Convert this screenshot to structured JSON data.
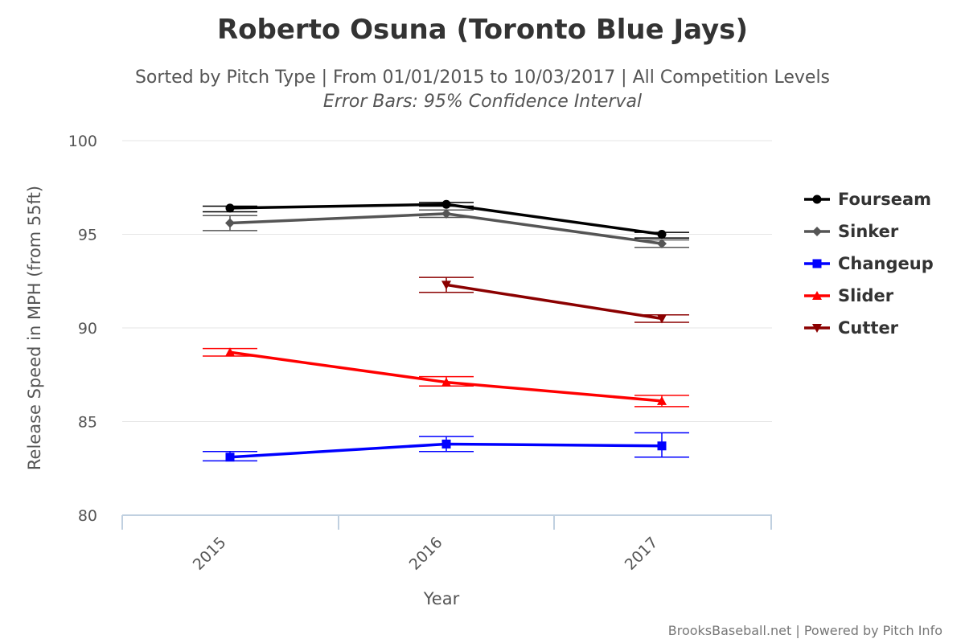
{
  "chart_data": {
    "type": "line",
    "title": "Roberto Osuna (Toronto Blue Jays)",
    "subtitle": "Sorted by Pitch Type | From 01/01/2015 to 10/03/2017 | All Competition Levels",
    "subtitle2": "Error Bars: 95% Confidence Interval",
    "xlabel": "Year",
    "ylabel": "Release Speed in MPH (from 55ft)",
    "categories": [
      "2015",
      "2016",
      "2017"
    ],
    "ylim": [
      80,
      100
    ],
    "yticks": [
      "80",
      "85",
      "90",
      "95",
      "100"
    ],
    "grid": true,
    "legend_position": "right",
    "credit": "BrooksBaseball.net | Powered by Pitch Info",
    "series": [
      {
        "name": "Fourseam",
        "color": "#000000",
        "marker": "circle",
        "values": [
          96.4,
          96.6,
          95.0
        ],
        "err_low": [
          96.2,
          96.5,
          94.8
        ],
        "err_high": [
          96.5,
          96.7,
          95.1
        ]
      },
      {
        "name": "Sinker",
        "color": "#555555",
        "marker": "diamond",
        "values": [
          95.6,
          96.1,
          94.5
        ],
        "err_low": [
          95.2,
          95.9,
          94.3
        ],
        "err_high": [
          96.0,
          96.3,
          94.7
        ]
      },
      {
        "name": "Changeup",
        "color": "#0000ff",
        "marker": "square",
        "values": [
          83.1,
          83.8,
          83.7
        ],
        "err_low": [
          82.9,
          83.4,
          83.1
        ],
        "err_high": [
          83.4,
          84.2,
          84.4
        ]
      },
      {
        "name": "Slider",
        "color": "#ff0000",
        "marker": "triangle",
        "values": [
          88.7,
          87.1,
          86.1
        ],
        "err_low": [
          88.5,
          86.9,
          85.8
        ],
        "err_high": [
          88.9,
          87.4,
          86.4
        ]
      },
      {
        "name": "Cutter",
        "color": "#8b0000",
        "marker": "triangle-down",
        "values": [
          null,
          92.3,
          90.5
        ],
        "err_low": [
          null,
          91.9,
          90.3
        ],
        "err_high": [
          null,
          92.7,
          90.7
        ]
      }
    ]
  }
}
